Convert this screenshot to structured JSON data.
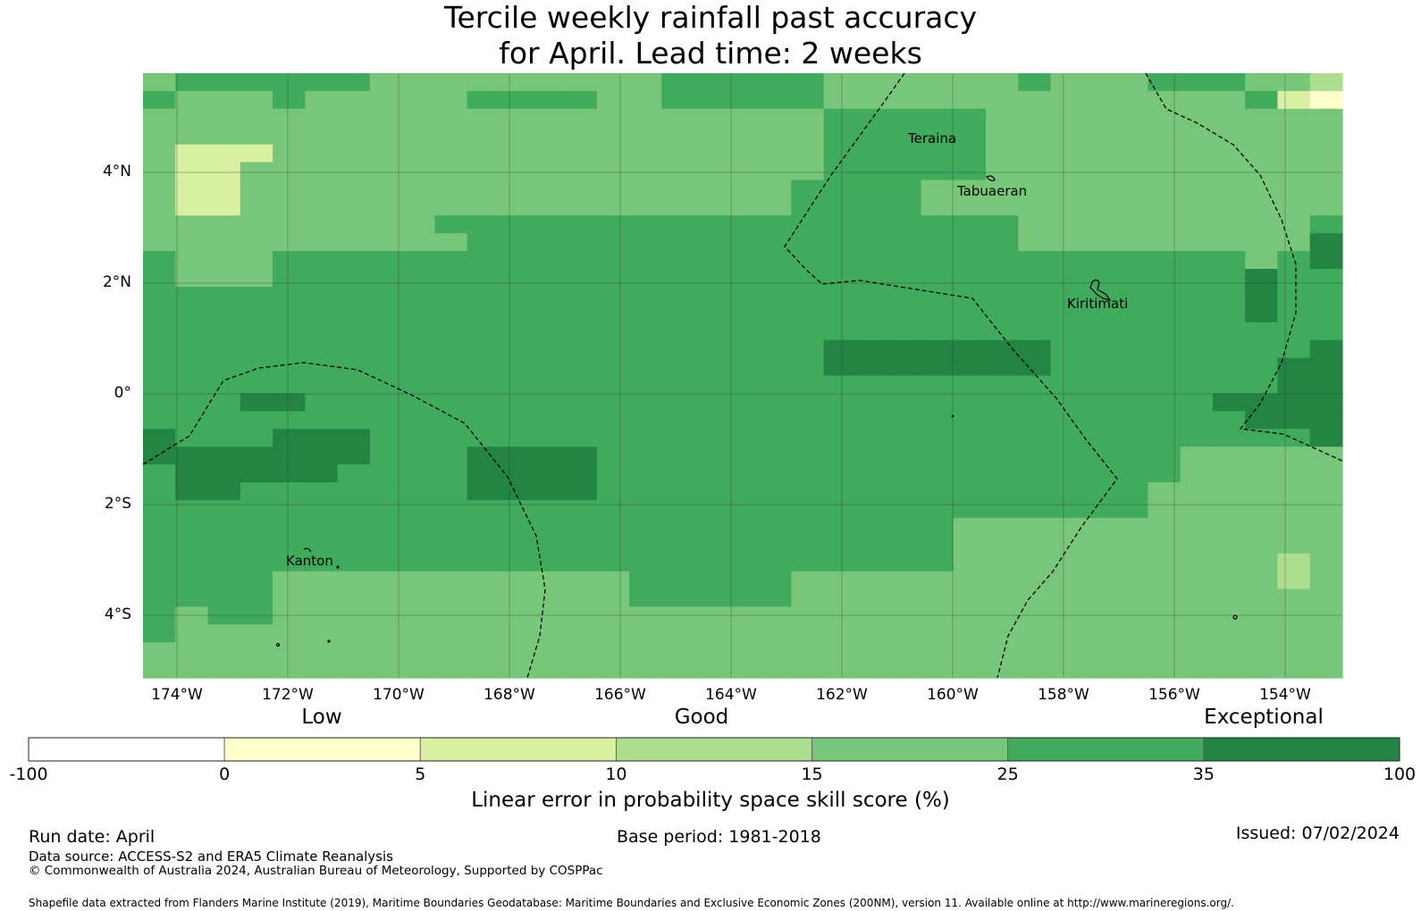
{
  "title": "Tercile weekly rainfall past accuracy\nfor April. Lead time: 2 weeks",
  "map": {
    "lon_labels": [
      "174°W",
      "172°W",
      "170°W",
      "168°W",
      "166°W",
      "164°W",
      "162°W",
      "160°W",
      "158°W",
      "156°W",
      "154°W"
    ],
    "lat_labels": [
      "4°N",
      "2°N",
      "0°",
      "2°S",
      "4°S"
    ],
    "places": [
      {
        "name": "Teraina"
      },
      {
        "name": "Tabuaeran"
      },
      {
        "name": "Kiritimati"
      },
      {
        "name": "Kanton"
      }
    ],
    "palette": [
      "#ffffff",
      "#ffffcc",
      "#d9f0a3",
      "#addd8e",
      "#78c679",
      "#41ab5d",
      "#238443"
    ],
    "grid_rows": [
      "4555555444444444555554444445444555443",
      "5444544444555544555554444444444444521",
      "4444444444444444444445555544444444444",
      "4444444444444444444445555544444444444",
      "4222444444444444444445555544444444444",
      "4224444444444444444445555544444444444",
      "4224444444444444444455554444444444444",
      "4224444444444444444455554444444444444",
      "4444444445555555555555555554444444445",
      "4444444444555555555555555554444444446",
      "5444555555555555555555555555555555456",
      "5444555555555555555555555555555555655",
      "5555555555555555555555555555555555655",
      "5555555555555555555555555555555555655",
      "5555555555555555555555555555555555555",
      "5555555555555555555556666666555555556",
      "5555555555555555555556666666555555566",
      "5555555555555555555555555555555555566",
      "5556655555555555555555555555555556666",
      "5555555555555555555555555555555555666",
      "6555666555555555555555555555555555556",
      "6666666555666655555555555555555544444",
      "5666665555666655555555555555555544444",
      "5665555555666655555555555555555444444",
      "5555555555555555555555555555555444444",
      "5555555555555555555555555444444444444",
      "5555555555555555555555555444444444444",
      "5555555555555555555555555444444444434",
      "5555444444444445555544444444444444434",
      "5555444444444445555544444444444444444",
      "5455444444444444444444444444444444444",
      "5444444444444444444444444444444444444",
      "4444444444444444444444444444444444444",
      "4444444444444444444444444444444444444"
    ]
  },
  "colorbar": {
    "categories": [
      "Low",
      "Good",
      "Exceptional"
    ],
    "tick_labels": [
      "-100",
      "0",
      "5",
      "10",
      "15",
      "25",
      "35",
      "100"
    ],
    "colors": [
      "#ffffff",
      "#ffffcc",
      "#d9f0a3",
      "#addd8e",
      "#78c679",
      "#41ab5d",
      "#238443"
    ],
    "title": "Linear error in probability space skill score (%)"
  },
  "footer": {
    "run_date": "Run date: April",
    "base_period": "Base period: 1981-2018",
    "issued": "Issued: 07/02/2024",
    "data_source": "Data source: ACCESS-S2 and ERA5 Climate Reanalysis",
    "copyright": "© Commonwealth of Australia 2024, Australian Bureau of Meteorology, Supported by COSPPac",
    "shapefile": "Shapefile data extracted from Flanders Marine Institute (2019), Maritime Boundaries Geodatabase: Maritime Boundaries and Exclusive Economic Zones (200NM), version 11. Available online at http://www.marineregions.org/."
  }
}
